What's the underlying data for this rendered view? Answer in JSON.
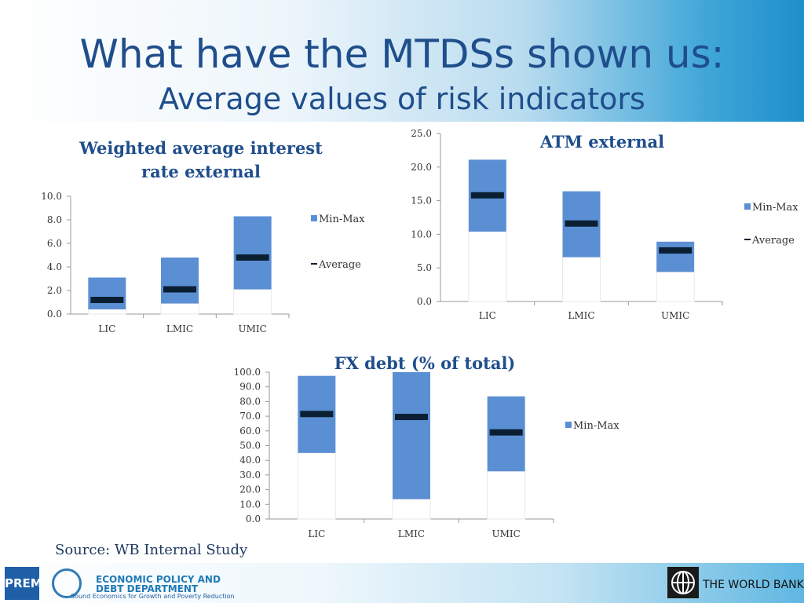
{
  "header": {
    "title": "What have the MTDSs shown us:",
    "subtitle": "Average values of risk indicators"
  },
  "source": "Source: WB Internal Study",
  "footer": {
    "left_logo_text": "PREM",
    "epd_line1": "ECONOMIC POLICY AND",
    "epd_line2": "DEBT DEPARTMENT",
    "epd_line3": "Sound Economics for Growth and Poverty Reduction",
    "wb_text": "THE WORLD BANK"
  },
  "colors": {
    "bar": "#5b8fd4",
    "average": "#0b1f33",
    "title": "#1f4e8c"
  },
  "chart_data": [
    {
      "type": "bar",
      "title": "Weighted average interest rate external",
      "categories": [
        "LIC",
        "LMIC",
        "UMIC"
      ],
      "series": [
        {
          "name": "Min-Max",
          "min": [
            0.4,
            0.9,
            2.1
          ],
          "max": [
            3.1,
            4.8,
            8.3
          ]
        },
        {
          "name": "Average",
          "values": [
            1.2,
            2.1,
            4.8
          ]
        }
      ],
      "ylim": [
        0,
        10
      ],
      "yticks": [
        "10.0",
        "8.0",
        "6.0",
        "4.0",
        "2.0",
        "0.0"
      ],
      "legend_position": "right",
      "grid": false
    },
    {
      "type": "bar",
      "title": "ATM external",
      "categories": [
        "LIC",
        "LMIC",
        "UMIC"
      ],
      "series": [
        {
          "name": "Min-Max",
          "min": [
            10.4,
            6.6,
            4.4
          ],
          "max": [
            21.1,
            16.4,
            8.9
          ]
        },
        {
          "name": "Average",
          "values": [
            15.8,
            11.6,
            7.6
          ]
        }
      ],
      "ylim": [
        0,
        25
      ],
      "yticks": [
        "25.0",
        "20.0",
        "15.0",
        "10.0",
        "5.0",
        "0.0"
      ],
      "legend_position": "right",
      "grid": false
    },
    {
      "type": "bar",
      "title": "FX debt (% of total)",
      "categories": [
        "LIC",
        "LMIC",
        "UMIC"
      ],
      "series": [
        {
          "name": "Min-Max",
          "min": [
            45,
            13.5,
            32.5
          ],
          "max": [
            97.5,
            100,
            83.5
          ]
        },
        {
          "name": "Average",
          "values": [
            71.5,
            69.5,
            59
          ]
        }
      ],
      "ylim": [
        0,
        100
      ],
      "yticks": [
        "100.0",
        "90.0",
        "80.0",
        "70.0",
        "60.0",
        "50.0",
        "40.0",
        "30.0",
        "20.0",
        "10.0",
        "0.0"
      ],
      "legend_position": "right",
      "grid": false
    }
  ]
}
